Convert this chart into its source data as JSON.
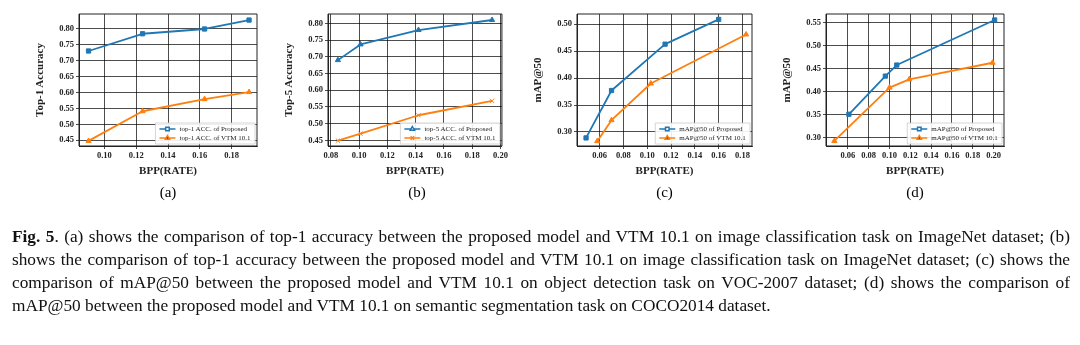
{
  "chart_data": [
    {
      "type": "line",
      "xlabel": "BPP(RATE)",
      "ylabel": "Top-1 Accuracy",
      "xlim": [
        0.084,
        0.196
      ],
      "xticks": [
        {
          "value": 0.1,
          "label": "0.10"
        },
        {
          "value": 0.12,
          "label": "0.12"
        },
        {
          "value": 0.14,
          "label": "0.14"
        },
        {
          "value": 0.16,
          "label": "0.16"
        },
        {
          "value": 0.18,
          "label": "0.18"
        }
      ],
      "ylim": [
        0.432,
        0.846
      ],
      "yticks": [
        {
          "value": 0.45,
          "label": "0.45"
        },
        {
          "value": 0.5,
          "label": "0.50"
        },
        {
          "value": 0.55,
          "label": "0.55"
        },
        {
          "value": 0.6,
          "label": "0.60"
        },
        {
          "value": 0.65,
          "label": "0.65"
        },
        {
          "value": 0.7,
          "label": "0.70"
        },
        {
          "value": 0.75,
          "label": "0.75"
        },
        {
          "value": 0.8,
          "label": "0.80"
        }
      ],
      "grid": true,
      "legend": "bottom right",
      "series": [
        {
          "name": "top-1 ACC. of Proposed",
          "color": "#1f77b4",
          "marker": "square",
          "x": [
            0.09,
            0.124,
            0.163,
            0.191
          ],
          "values": [
            0.73,
            0.784,
            0.799,
            0.827
          ]
        },
        {
          "name": "top-1 ACC. of VTM 10.1",
          "color": "#ff7f0e",
          "marker": "triangle",
          "x": [
            0.09,
            0.124,
            0.163,
            0.191
          ],
          "values": [
            0.448,
            0.541,
            0.579,
            0.601
          ]
        }
      ],
      "annotations": [
        "(a)",
        "Fig. 5",
        ". (a) shows the comparison of top-1 accuracy between the proposed model and VTM 10.1 on image classification task on ImageNet dataset; (b) shows the comparison of top-1 accuracy between the proposed model and VTM 10.1 on image classification task on ImageNet dataset; (c) shows the comparison of mAP@50 between the proposed model and VTM 10.1 on object detection task on VOC-2007 dataset; (d) shows the comparison of mAP@50 between the proposed model and VTM 10.1 on semantic segmentation task on COCO2014 dataset."
      ]
    },
    {
      "type": "line",
      "xlabel": "BPP(RATE)",
      "ylabel": "Top-5 Accuracy",
      "xlim": [
        0.078,
        0.201
      ],
      "xticks": [
        {
          "value": 0.08,
          "label": "0.08"
        },
        {
          "value": 0.1,
          "label": "0.10"
        },
        {
          "value": 0.12,
          "label": "0.12"
        },
        {
          "value": 0.14,
          "label": "0.14"
        },
        {
          "value": 0.16,
          "label": "0.16"
        },
        {
          "value": 0.18,
          "label": "0.18"
        },
        {
          "value": 0.2,
          "label": "0.20"
        }
      ],
      "ylim": [
        0.433,
        0.828
      ],
      "yticks": [
        {
          "value": 0.45,
          "label": "0.45"
        },
        {
          "value": 0.5,
          "label": "0.50"
        },
        {
          "value": 0.55,
          "label": "0.55"
        },
        {
          "value": 0.6,
          "label": "0.60"
        },
        {
          "value": 0.65,
          "label": "0.65"
        },
        {
          "value": 0.7,
          "label": "0.70"
        },
        {
          "value": 0.75,
          "label": "0.75"
        },
        {
          "value": 0.8,
          "label": "0.80"
        }
      ],
      "grid": true,
      "legend": "bottom right",
      "series": [
        {
          "name": "top-5 ACC. of Proposed",
          "color": "#1f77b4",
          "marker": "triangle",
          "x": [
            0.085,
            0.101,
            0.142,
            0.194
          ],
          "values": [
            0.69,
            0.737,
            0.78,
            0.81
          ]
        },
        {
          "name": "top-5 ACC. of VTM 10.1",
          "color": "#ff7f0e",
          "marker": "cross",
          "x": [
            0.085,
            0.101,
            0.142,
            0.194
          ],
          "values": [
            0.449,
            0.47,
            0.525,
            0.568
          ]
        }
      ],
      "annotations": [
        "(b)"
      ]
    },
    {
      "type": "line",
      "xlabel": "BPP(RATE)",
      "ylabel": "mAP@50",
      "xlim": [
        0.041,
        0.188
      ],
      "xticks": [
        {
          "value": 0.06,
          "label": "0.06"
        },
        {
          "value": 0.08,
          "label": "0.08"
        },
        {
          "value": 0.1,
          "label": "0.10"
        },
        {
          "value": 0.12,
          "label": "0.12"
        },
        {
          "value": 0.14,
          "label": "0.14"
        },
        {
          "value": 0.16,
          "label": "0.16"
        },
        {
          "value": 0.18,
          "label": "0.18"
        }
      ],
      "ylim": [
        0.274,
        0.519
      ],
      "yticks": [
        {
          "value": 0.3,
          "label": "0.30"
        },
        {
          "value": 0.35,
          "label": "0.35"
        },
        {
          "value": 0.4,
          "label": "0.40"
        },
        {
          "value": 0.45,
          "label": "0.45"
        },
        {
          "value": 0.5,
          "label": "0.50"
        }
      ],
      "grid": true,
      "legend": "bottom right",
      "series": [
        {
          "name": "mAP@50 of Proposed",
          "color": "#1f77b4",
          "marker": "square",
          "x": [
            0.0486,
            0.07,
            0.115,
            0.16
          ],
          "values": [
            0.289,
            0.377,
            0.463,
            0.509
          ]
        },
        {
          "name": "mAP@50 of VTM 10.1",
          "color": "#ff7f0e",
          "marker": "triangle",
          "x": [
            0.058,
            0.07,
            0.103,
            0.183
          ],
          "values": [
            0.283,
            0.322,
            0.39,
            0.481
          ]
        }
      ],
      "annotations": [
        "(c)"
      ]
    },
    {
      "type": "line",
      "xlabel": "BPP(RATE)",
      "ylabel": "mAP@50",
      "xlim": [
        0.039,
        0.21
      ],
      "xticks": [
        {
          "value": 0.06,
          "label": "0.06"
        },
        {
          "value": 0.08,
          "label": "0.08"
        },
        {
          "value": 0.1,
          "label": "0.10"
        },
        {
          "value": 0.12,
          "label": "0.12"
        },
        {
          "value": 0.14,
          "label": "0.14"
        },
        {
          "value": 0.16,
          "label": "0.16"
        },
        {
          "value": 0.18,
          "label": "0.18"
        },
        {
          "value": 0.2,
          "label": "0.20"
        }
      ],
      "ylim": [
        0.282,
        0.569
      ],
      "yticks": [
        {
          "value": 0.3,
          "label": "0.30"
        },
        {
          "value": 0.35,
          "label": "0.35"
        },
        {
          "value": 0.4,
          "label": "0.40"
        },
        {
          "value": 0.45,
          "label": "0.45"
        },
        {
          "value": 0.5,
          "label": "0.50"
        },
        {
          "value": 0.55,
          "label": "0.55"
        }
      ],
      "grid": true,
      "legend": "bottom right",
      "series": [
        {
          "name": "mAP@50 of Proposed",
          "color": "#1f77b4",
          "marker": "square",
          "x": [
            0.061,
            0.096,
            0.107,
            0.201
          ],
          "values": [
            0.351,
            0.434,
            0.458,
            0.556
          ]
        },
        {
          "name": "mAP@50 of VTM 10.1",
          "color": "#ff7f0e",
          "marker": "triangle",
          "x": [
            0.047,
            0.1,
            0.119,
            0.199
          ],
          "values": [
            0.293,
            0.409,
            0.427,
            0.463
          ]
        }
      ],
      "annotations": [
        "(d)"
      ]
    }
  ]
}
